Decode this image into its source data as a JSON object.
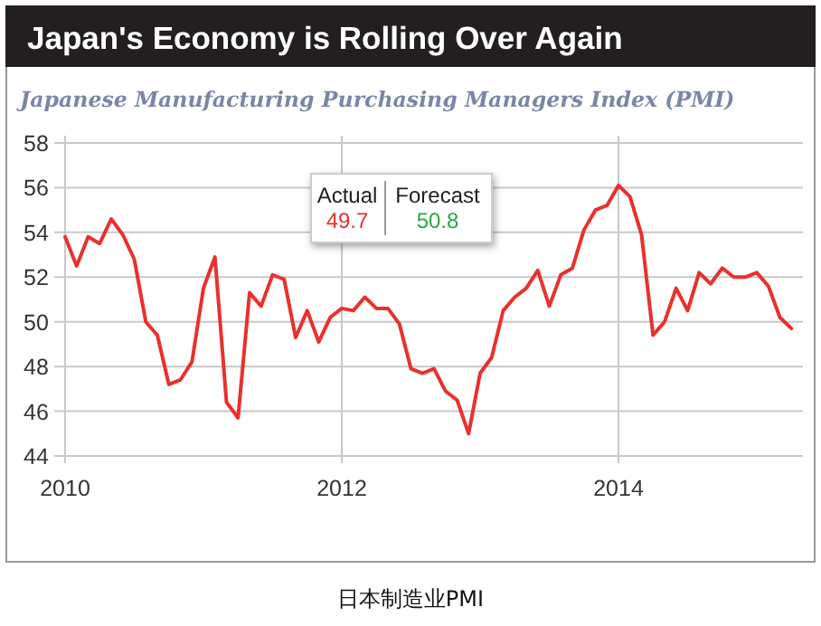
{
  "chart_data": {
    "type": "line",
    "title": "Japan's Economy is Rolling Over Again",
    "subtitle": "Japanese Manufacturing Purchasing Managers Index (PMI)",
    "annotations": [
      "Actual",
      "49.7",
      "Forecast",
      "50.8",
      "日本制造业PMI"
    ],
    "x": [
      "2010-01",
      "2010-02",
      "2010-03",
      "2010-04",
      "2010-05",
      "2010-06",
      "2010-07",
      "2010-08",
      "2010-09",
      "2010-10",
      "2010-11",
      "2010-12",
      "2011-01",
      "2011-02",
      "2011-03",
      "2011-04",
      "2011-05",
      "2011-06",
      "2011-07",
      "2011-08",
      "2011-09",
      "2011-10",
      "2011-11",
      "2011-12",
      "2012-01",
      "2012-02",
      "2012-03",
      "2012-04",
      "2012-05",
      "2012-06",
      "2012-07",
      "2012-08",
      "2012-09",
      "2012-10",
      "2012-11",
      "2012-12",
      "2013-01",
      "2013-02",
      "2013-03",
      "2013-04",
      "2013-05",
      "2013-06",
      "2013-07",
      "2013-08",
      "2013-09",
      "2013-10",
      "2013-11",
      "2013-12",
      "2014-01",
      "2014-02",
      "2014-03",
      "2014-04",
      "2014-05",
      "2014-06",
      "2014-07",
      "2014-08",
      "2014-09",
      "2014-10",
      "2014-11",
      "2014-12",
      "2015-01",
      "2015-02",
      "2015-03",
      "2015-04"
    ],
    "series": [
      {
        "color": "#e8312f",
        "values": [
          53.8,
          52.5,
          53.8,
          53.5,
          54.6,
          53.9,
          52.8,
          50.0,
          49.4,
          47.2,
          47.4,
          48.2,
          51.5,
          52.9,
          46.4,
          45.7,
          51.3,
          50.7,
          52.1,
          51.9,
          49.3,
          50.5,
          49.1,
          50.2,
          50.6,
          50.5,
          51.1,
          50.6,
          50.6,
          49.9,
          47.9,
          47.7,
          47.9,
          46.9,
          46.5,
          45.0,
          47.7,
          48.4,
          50.5,
          51.1,
          51.5,
          52.3,
          50.7,
          52.1,
          52.4,
          54.1,
          55.0,
          55.2,
          56.1,
          55.6,
          53.9,
          49.4,
          50.0,
          51.5,
          50.5,
          52.2,
          51.7,
          52.4,
          52.0,
          52.0,
          52.2,
          51.6,
          50.2,
          49.7
        ]
      }
    ],
    "xlim": [
      "2010",
      "2015-05"
    ],
    "xticks": [
      {
        "value": "2010",
        "label": "2010"
      },
      {
        "value": "2012",
        "label": "2012"
      },
      {
        "value": "2014",
        "label": "2014"
      }
    ],
    "ylim": [
      44,
      58
    ],
    "yticks": [
      44,
      46,
      48,
      50,
      52,
      54,
      56,
      58
    ],
    "grid": true,
    "marker": "none",
    "line_style": "solid"
  }
}
